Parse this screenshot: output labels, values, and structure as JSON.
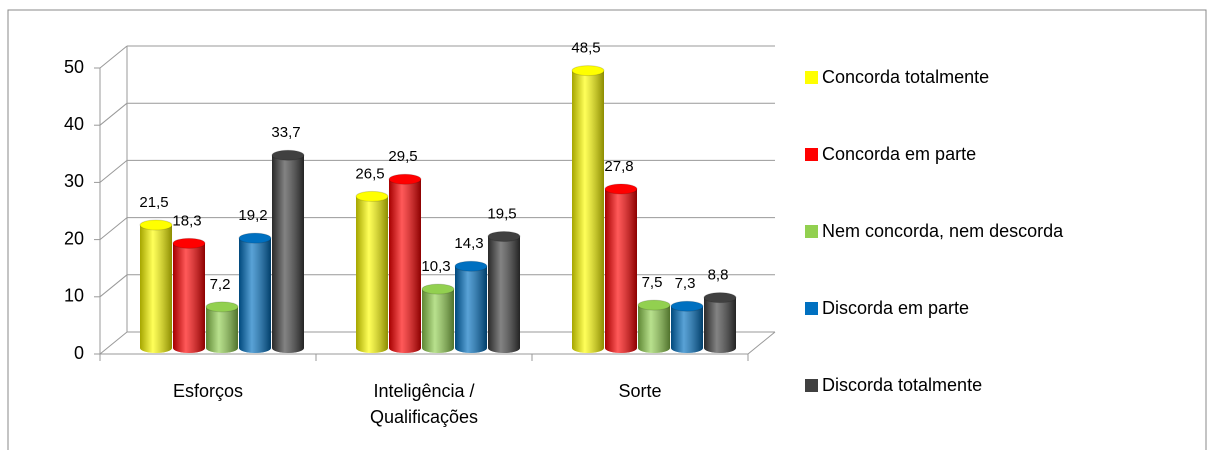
{
  "chart_data": {
    "type": "bar3d",
    "categories": [
      "Esforços",
      "Inteligência / Qualificações",
      "Sorte"
    ],
    "series": [
      {
        "name": "Concorda totalmente",
        "color": "#ffff00",
        "values": [
          21.5,
          26.5,
          48.5
        ],
        "value_labels": [
          "21,5",
          "26,5",
          "48,5"
        ]
      },
      {
        "name": "Concorda em parte",
        "color": "#ff0000",
        "values": [
          18.3,
          29.5,
          27.8
        ],
        "value_labels": [
          "18,3",
          "29,5",
          "27,8"
        ]
      },
      {
        "name": "Nem concorda, nem descorda",
        "color": "#92d050",
        "values": [
          7.2,
          10.3,
          7.5
        ],
        "value_labels": [
          "7,2",
          "10,3",
          "7,5"
        ]
      },
      {
        "name": "Discorda em parte",
        "color": "#0070c0",
        "values": [
          19.2,
          14.3,
          7.3
        ],
        "value_labels": [
          "19,2",
          "14,3",
          "7,3"
        ]
      },
      {
        "name": "Discorda totalmente",
        "color": "#404040",
        "values": [
          33.7,
          19.5,
          8.8
        ],
        "value_labels": [
          "33,7",
          "19,5",
          "8,8"
        ]
      }
    ],
    "ylim": [
      0,
      50
    ],
    "yticks": [
      0,
      10,
      20,
      30,
      40,
      50
    ],
    "grid": true,
    "legend": "right"
  }
}
